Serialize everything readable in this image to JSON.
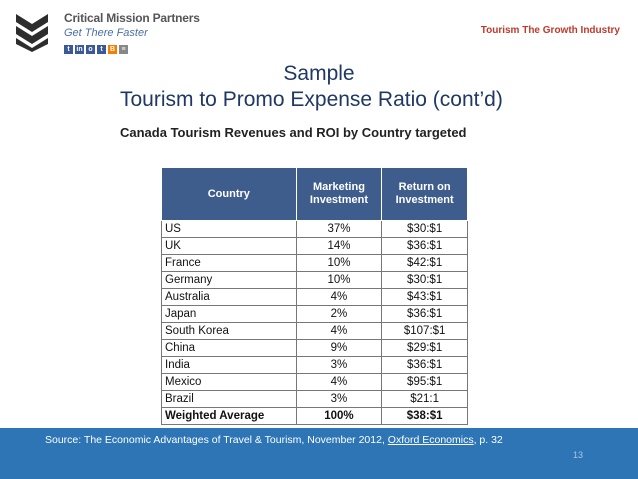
{
  "header": {
    "logo": {
      "name": "Critical Mission Partners",
      "tagline": "Get There Faster"
    },
    "right_label": "Tourism The Growth Industry"
  },
  "slide": {
    "title_line1": "Sample",
    "title_line2": "Tourism to Promo Expense Ratio (cont’d)",
    "subtitle": "Canada Tourism Revenues and ROI by Country targeted"
  },
  "table": {
    "headers": [
      "Country",
      "Marketing Investment",
      "Return on Investment"
    ],
    "rows": [
      [
        "US",
        "37%",
        "$30:$1"
      ],
      [
        "UK",
        "14%",
        "$36:$1"
      ],
      [
        "France",
        "10%",
        "$42:$1"
      ],
      [
        "Germany",
        "10%",
        "$30:$1"
      ],
      [
        "Australia",
        "4%",
        "$43:$1"
      ],
      [
        "Japan",
        "2%",
        "$36:$1"
      ],
      [
        "South Korea",
        "4%",
        "$107:$1"
      ],
      [
        "China",
        "9%",
        "$29:$1"
      ],
      [
        "India",
        "3%",
        "$36:$1"
      ],
      [
        "Mexico",
        "4%",
        "$95:$1"
      ],
      [
        "Brazil",
        "3%",
        "$21:1"
      ],
      [
        "Weighted Average",
        "100%",
        "$38:$1"
      ]
    ]
  },
  "footer": {
    "source_prefix": "Source: The Economic Advantages of Travel & Tourism, November 2012, ",
    "source_link": "Oxford Economics",
    "source_suffix": ", p. 32",
    "page_number": "13"
  },
  "colors": {
    "title": "#1f3864",
    "header_bg": "#3e5d8c",
    "footer_bg": "#2e75b6",
    "accent": "#c0392b"
  }
}
